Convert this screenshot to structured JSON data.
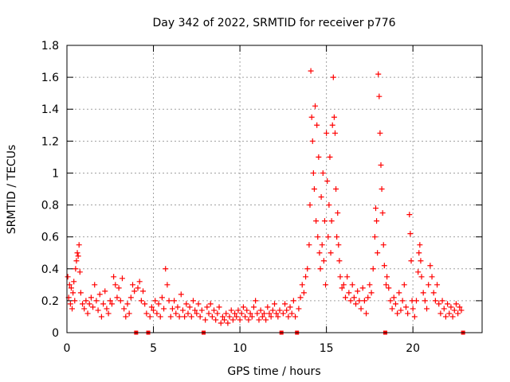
{
  "chart_data": {
    "type": "scatter",
    "title": "Day 342 of 2022, SRMTID for receiver p776",
    "xlabel": "GPS time / hours",
    "ylabel": "SRMTID / TECUs",
    "xlim": [
      0,
      24
    ],
    "ylim": [
      0,
      1.8
    ],
    "x_ticks": [
      0,
      5,
      10,
      15,
      20
    ],
    "x_tick_labels": [
      "0",
      "5",
      "10",
      "15",
      "20"
    ],
    "y_ticks": [
      0,
      0.2,
      0.4,
      0.6,
      0.8,
      1,
      1.2,
      1.4,
      1.6,
      1.8
    ],
    "y_tick_labels": [
      "0",
      "0.2",
      "0.4",
      "0.6",
      "0.8",
      "1",
      "1.2",
      "1.4",
      "1.6",
      "1.8"
    ],
    "grid": true,
    "marker": "+",
    "color": "#ff0000",
    "gap_markers_x": [
      4.0,
      4.7,
      7.9,
      12.4,
      13.3,
      18.4,
      22.9
    ],
    "series": [
      {
        "name": "SRMTID",
        "points": [
          [
            0.05,
            0.35
          ],
          [
            0.1,
            0.22
          ],
          [
            0.15,
            0.3
          ],
          [
            0.2,
            0.18
          ],
          [
            0.25,
            0.28
          ],
          [
            0.3,
            0.15
          ],
          [
            0.35,
            0.25
          ],
          [
            0.4,
            0.32
          ],
          [
            0.45,
            0.2
          ],
          [
            0.5,
            0.4
          ],
          [
            0.55,
            0.45
          ],
          [
            0.6,
            0.5
          ],
          [
            0.65,
            0.48
          ],
          [
            0.7,
            0.55
          ],
          [
            0.75,
            0.38
          ],
          [
            0.8,
            0.25
          ],
          [
            0.9,
            0.18
          ],
          [
            1.0,
            0.15
          ],
          [
            1.1,
            0.2
          ],
          [
            1.2,
            0.12
          ],
          [
            1.3,
            0.18
          ],
          [
            1.4,
            0.22
          ],
          [
            1.5,
            0.16
          ],
          [
            1.6,
            0.3
          ],
          [
            1.7,
            0.2
          ],
          [
            1.8,
            0.14
          ],
          [
            1.9,
            0.24
          ],
          [
            2.0,
            0.1
          ],
          [
            2.1,
            0.18
          ],
          [
            2.2,
            0.26
          ],
          [
            2.3,
            0.15
          ],
          [
            2.4,
            0.12
          ],
          [
            2.5,
            0.2
          ],
          [
            2.6,
            0.18
          ],
          [
            2.7,
            0.35
          ],
          [
            2.8,
            0.3
          ],
          [
            2.9,
            0.22
          ],
          [
            3.0,
            0.28
          ],
          [
            3.1,
            0.2
          ],
          [
            3.2,
            0.34
          ],
          [
            3.3,
            0.15
          ],
          [
            3.4,
            0.1
          ],
          [
            3.5,
            0.18
          ],
          [
            3.6,
            0.12
          ],
          [
            3.7,
            0.22
          ],
          [
            3.8,
            0.3
          ],
          [
            3.9,
            0.26
          ],
          [
            4.1,
            0.28
          ],
          [
            4.2,
            0.32
          ],
          [
            4.3,
            0.2
          ],
          [
            4.4,
            0.26
          ],
          [
            4.5,
            0.18
          ],
          [
            4.6,
            0.12
          ],
          [
            4.8,
            0.1
          ],
          [
            4.9,
            0.16
          ],
          [
            5.0,
            0.14
          ],
          [
            5.1,
            0.2
          ],
          [
            5.2,
            0.12
          ],
          [
            5.3,
            0.18
          ],
          [
            5.4,
            0.1
          ],
          [
            5.5,
            0.22
          ],
          [
            5.6,
            0.15
          ],
          [
            5.7,
            0.4
          ],
          [
            5.8,
            0.3
          ],
          [
            5.9,
            0.2
          ],
          [
            6.0,
            0.1
          ],
          [
            6.1,
            0.15
          ],
          [
            6.2,
            0.2
          ],
          [
            6.3,
            0.12
          ],
          [
            6.4,
            0.16
          ],
          [
            6.5,
            0.1
          ],
          [
            6.6,
            0.24
          ],
          [
            6.7,
            0.14
          ],
          [
            6.8,
            0.1
          ],
          [
            6.9,
            0.18
          ],
          [
            7.0,
            0.12
          ],
          [
            7.1,
            0.16
          ],
          [
            7.2,
            0.1
          ],
          [
            7.3,
            0.2
          ],
          [
            7.4,
            0.14
          ],
          [
            7.5,
            0.12
          ],
          [
            7.6,
            0.18
          ],
          [
            7.7,
            0.1
          ],
          [
            7.8,
            0.14
          ],
          [
            8.0,
            0.08
          ],
          [
            8.1,
            0.16
          ],
          [
            8.2,
            0.12
          ],
          [
            8.3,
            0.18
          ],
          [
            8.4,
            0.1
          ],
          [
            8.5,
            0.14
          ],
          [
            8.6,
            0.08
          ],
          [
            8.7,
            0.12
          ],
          [
            8.8,
            0.16
          ],
          [
            8.9,
            0.06
          ],
          [
            9.0,
            0.1
          ],
          [
            9.1,
            0.08
          ],
          [
            9.2,
            0.12
          ],
          [
            9.3,
            0.06
          ],
          [
            9.4,
            0.1
          ],
          [
            9.5,
            0.14
          ],
          [
            9.6,
            0.08
          ],
          [
            9.7,
            0.12
          ],
          [
            9.8,
            0.1
          ],
          [
            9.9,
            0.14
          ],
          [
            10.0,
            0.08
          ],
          [
            10.1,
            0.12
          ],
          [
            10.2,
            0.16
          ],
          [
            10.3,
            0.1
          ],
          [
            10.4,
            0.14
          ],
          [
            10.5,
            0.08
          ],
          [
            10.6,
            0.12
          ],
          [
            10.7,
            0.1
          ],
          [
            10.8,
            0.16
          ],
          [
            10.9,
            0.2
          ],
          [
            11.0,
            0.12
          ],
          [
            11.1,
            0.08
          ],
          [
            11.2,
            0.14
          ],
          [
            11.3,
            0.1
          ],
          [
            11.4,
            0.12
          ],
          [
            11.5,
            0.08
          ],
          [
            11.6,
            0.16
          ],
          [
            11.7,
            0.12
          ],
          [
            11.8,
            0.1
          ],
          [
            11.9,
            0.14
          ],
          [
            12.0,
            0.18
          ],
          [
            12.1,
            0.12
          ],
          [
            12.2,
            0.1
          ],
          [
            12.3,
            0.14
          ],
          [
            12.5,
            0.12
          ],
          [
            12.6,
            0.18
          ],
          [
            12.7,
            0.14
          ],
          [
            12.8,
            0.1
          ],
          [
            12.9,
            0.16
          ],
          [
            13.0,
            0.12
          ],
          [
            13.1,
            0.2
          ],
          [
            13.2,
            0.1
          ],
          [
            13.4,
            0.15
          ],
          [
            13.5,
            0.22
          ],
          [
            13.6,
            0.3
          ],
          [
            13.7,
            0.25
          ],
          [
            13.8,
            0.35
          ],
          [
            13.9,
            0.4
          ],
          [
            14.0,
            0.55
          ],
          [
            14.05,
            0.8
          ],
          [
            14.1,
            1.64
          ],
          [
            14.15,
            1.35
          ],
          [
            14.2,
            1.2
          ],
          [
            14.25,
            1.0
          ],
          [
            14.3,
            0.9
          ],
          [
            14.35,
            1.42
          ],
          [
            14.4,
            0.7
          ],
          [
            14.45,
            1.3
          ],
          [
            14.5,
            0.6
          ],
          [
            14.55,
            1.1
          ],
          [
            14.6,
            0.5
          ],
          [
            14.65,
            0.4
          ],
          [
            14.7,
            0.85
          ],
          [
            14.75,
            0.55
          ],
          [
            14.8,
            1.0
          ],
          [
            14.85,
            0.45
          ],
          [
            14.9,
            0.7
          ],
          [
            14.95,
            0.3
          ],
          [
            15.0,
            1.25
          ],
          [
            15.05,
            0.95
          ],
          [
            15.1,
            0.6
          ],
          [
            15.15,
            0.8
          ],
          [
            15.2,
            1.1
          ],
          [
            15.25,
            0.5
          ],
          [
            15.3,
            0.7
          ],
          [
            15.35,
            1.3
          ],
          [
            15.4,
            1.6
          ],
          [
            15.45,
            1.35
          ],
          [
            15.5,
            1.25
          ],
          [
            15.55,
            0.9
          ],
          [
            15.6,
            0.6
          ],
          [
            15.65,
            0.75
          ],
          [
            15.7,
            0.55
          ],
          [
            15.75,
            0.45
          ],
          [
            15.8,
            0.35
          ],
          [
            15.9,
            0.28
          ],
          [
            16.0,
            0.3
          ],
          [
            16.1,
            0.22
          ],
          [
            16.2,
            0.35
          ],
          [
            16.3,
            0.25
          ],
          [
            16.4,
            0.2
          ],
          [
            16.5,
            0.3
          ],
          [
            16.6,
            0.22
          ],
          [
            16.7,
            0.18
          ],
          [
            16.8,
            0.26
          ],
          [
            16.9,
            0.2
          ],
          [
            17.0,
            0.15
          ],
          [
            17.1,
            0.28
          ],
          [
            17.2,
            0.2
          ],
          [
            17.3,
            0.12
          ],
          [
            17.4,
            0.22
          ],
          [
            17.5,
            0.3
          ],
          [
            17.6,
            0.25
          ],
          [
            17.7,
            0.4
          ],
          [
            17.8,
            0.6
          ],
          [
            17.85,
            0.78
          ],
          [
            17.9,
            0.7
          ],
          [
            17.95,
            0.5
          ],
          [
            18.0,
            1.62
          ],
          [
            18.05,
            1.48
          ],
          [
            18.1,
            1.25
          ],
          [
            18.15,
            1.05
          ],
          [
            18.2,
            0.9
          ],
          [
            18.25,
            0.75
          ],
          [
            18.3,
            0.55
          ],
          [
            18.35,
            0.42
          ],
          [
            18.45,
            0.3
          ],
          [
            18.5,
            0.35
          ],
          [
            18.6,
            0.28
          ],
          [
            18.7,
            0.2
          ],
          [
            18.8,
            0.15
          ],
          [
            18.9,
            0.22
          ],
          [
            19.0,
            0.18
          ],
          [
            19.1,
            0.12
          ],
          [
            19.2,
            0.25
          ],
          [
            19.3,
            0.14
          ],
          [
            19.4,
            0.2
          ],
          [
            19.5,
            0.3
          ],
          [
            19.6,
            0.16
          ],
          [
            19.7,
            0.12
          ],
          [
            19.8,
            0.74
          ],
          [
            19.85,
            0.62
          ],
          [
            19.9,
            0.45
          ],
          [
            19.95,
            0.2
          ],
          [
            20.0,
            0.15
          ],
          [
            20.1,
            0.1
          ],
          [
            20.2,
            0.2
          ],
          [
            20.3,
            0.38
          ],
          [
            20.35,
            0.5
          ],
          [
            20.4,
            0.55
          ],
          [
            20.45,
            0.45
          ],
          [
            20.5,
            0.35
          ],
          [
            20.6,
            0.25
          ],
          [
            20.7,
            0.2
          ],
          [
            20.8,
            0.15
          ],
          [
            20.9,
            0.3
          ],
          [
            21.0,
            0.42
          ],
          [
            21.1,
            0.35
          ],
          [
            21.2,
            0.25
          ],
          [
            21.3,
            0.2
          ],
          [
            21.4,
            0.3
          ],
          [
            21.5,
            0.18
          ],
          [
            21.6,
            0.12
          ],
          [
            21.7,
            0.2
          ],
          [
            21.8,
            0.15
          ],
          [
            21.9,
            0.1
          ],
          [
            22.0,
            0.18
          ],
          [
            22.1,
            0.12
          ],
          [
            22.2,
            0.16
          ],
          [
            22.3,
            0.1
          ],
          [
            22.4,
            0.14
          ],
          [
            22.5,
            0.18
          ],
          [
            22.6,
            0.12
          ],
          [
            22.7,
            0.16
          ],
          [
            22.8,
            0.14
          ]
        ]
      }
    ]
  }
}
